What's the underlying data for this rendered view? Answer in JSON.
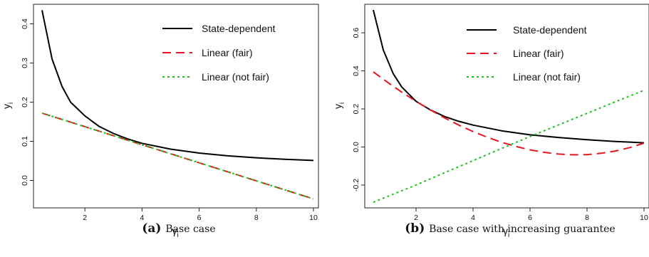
{
  "chart_data": [
    {
      "type": "line",
      "caption_label": "(a)",
      "caption_text": "Base case",
      "xlabel": "γ",
      "xlabel_sub": "i",
      "ylabel": "y",
      "ylabel_sub": "i",
      "xlim": [
        0.2,
        10.2
      ],
      "ylim": [
        -0.07,
        0.45
      ],
      "xticks": [
        2,
        4,
        6,
        8,
        10
      ],
      "yticks": [
        0.0,
        0.1,
        0.2,
        0.3,
        0.4
      ],
      "ytick_labels": [
        "0.0",
        "0.1",
        "0.2",
        "0.3",
        "0.4"
      ],
      "legend_position": "top-right",
      "series": [
        {
          "name": "State-dependent",
          "color": "#000000",
          "dash": "solid",
          "x": [
            0.5,
            0.85,
            1.2,
            1.5,
            2.0,
            2.5,
            3.0,
            3.5,
            4.0,
            5.0,
            6.0,
            7.0,
            8.0,
            9.0,
            10.0
          ],
          "y": [
            0.435,
            0.31,
            0.24,
            0.2,
            0.165,
            0.138,
            0.12,
            0.106,
            0.095,
            0.08,
            0.07,
            0.063,
            0.058,
            0.054,
            0.051
          ]
        },
        {
          "name": "Linear (fair)",
          "color": "#e8161c",
          "dash": "dashed",
          "x": [
            0.5,
            10.0
          ],
          "y": [
            0.172,
            -0.047
          ]
        },
        {
          "name": "Linear (not fair)",
          "color": "#1fc11f",
          "dash": "dotted",
          "x": [
            0.5,
            10.0
          ],
          "y": [
            0.172,
            -0.047
          ]
        }
      ]
    },
    {
      "type": "line",
      "caption_label": "(b)",
      "caption_text": "Base case with increasing guarantee",
      "xlabel": "γ",
      "xlabel_sub": "i",
      "ylabel": "y",
      "ylabel_sub": "i",
      "xlim": [
        0.2,
        10.2
      ],
      "ylim": [
        -0.32,
        0.75
      ],
      "xticks": [
        2,
        4,
        6,
        8,
        10
      ],
      "yticks": [
        -0.2,
        0.0,
        0.2,
        0.4,
        0.6
      ],
      "ytick_labels": [
        "-0.2",
        "0.0",
        "0.2",
        "0.4",
        "0.6"
      ],
      "legend_position": "top-right",
      "series": [
        {
          "name": "State-dependent",
          "color": "#000000",
          "dash": "solid",
          "x": [
            0.5,
            0.85,
            1.2,
            1.5,
            2.0,
            2.5,
            3.0,
            3.5,
            4.0,
            5.0,
            6.0,
            7.0,
            8.0,
            9.0,
            10.0
          ],
          "y": [
            0.72,
            0.51,
            0.385,
            0.315,
            0.24,
            0.195,
            0.16,
            0.135,
            0.115,
            0.085,
            0.064,
            0.05,
            0.038,
            0.029,
            0.022
          ]
        },
        {
          "name": "Linear (fair)",
          "color": "#e8161c",
          "dash": "dashed",
          "x": [
            0.5,
            1.0,
            1.5,
            2.0,
            2.5,
            3.0,
            3.5,
            4.0,
            4.5,
            5.0,
            5.5,
            6.0,
            6.5,
            7.0,
            7.5,
            8.0,
            8.5,
            9.0,
            9.5,
            10.0
          ],
          "y": [
            0.395,
            0.34,
            0.288,
            0.24,
            0.195,
            0.153,
            0.115,
            0.081,
            0.051,
            0.025,
            0.003,
            -0.015,
            -0.028,
            -0.037,
            -0.041,
            -0.04,
            -0.033,
            -0.021,
            -0.003,
            0.02
          ]
        },
        {
          "name": "Linear (not fair)",
          "color": "#1fc11f",
          "dash": "dotted",
          "x": [
            0.5,
            1.0,
            2.0,
            3.0,
            4.0,
            5.0,
            6.0,
            7.0,
            8.0,
            9.0,
            10.0
          ],
          "y": [
            -0.29,
            -0.26,
            -0.2,
            -0.135,
            -0.072,
            -0.008,
            0.055,
            0.116,
            0.177,
            0.238,
            0.298
          ]
        }
      ]
    }
  ]
}
